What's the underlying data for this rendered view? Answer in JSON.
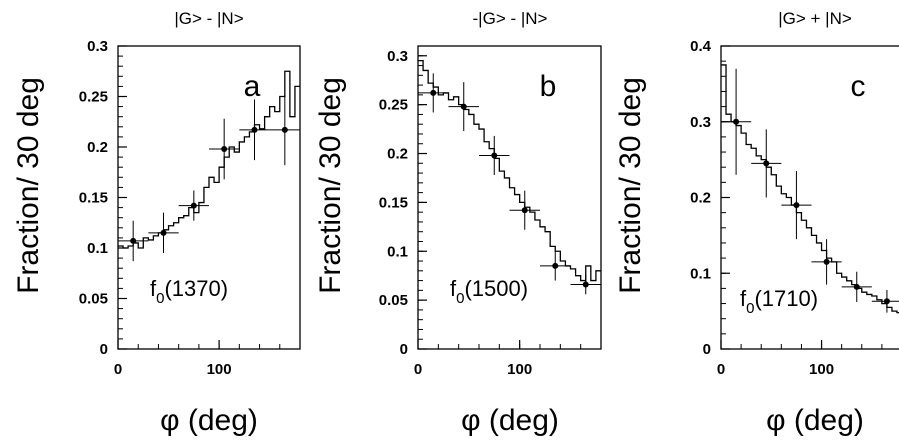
{
  "chart_data": [
    {
      "type": "line",
      "panel_letter": "a",
      "title": "|G> - |N>",
      "annotation": "f_0(1370)",
      "annotation_main": "f",
      "annotation_sub": "0",
      "annotation_rest": "(1370)",
      "ylabel": "Fraction/ 30 deg",
      "xlabel": "φ (deg)",
      "xlim": [
        0,
        180
      ],
      "ylim": [
        0,
        0.3
      ],
      "xticks": [
        0,
        100
      ],
      "yticks": [
        0,
        0.05,
        0.1,
        0.15,
        0.2,
        0.25,
        0.3
      ],
      "ytick_labels": [
        "0",
        "0.05",
        "0.1",
        "0.15",
        "0.2",
        "0.25",
        "0.3"
      ],
      "xtick_labels": [
        "0",
        "100"
      ],
      "series": [
        {
          "kind": "histogram",
          "bin_edges": [
            0,
            5,
            10,
            15,
            20,
            25,
            30,
            35,
            40,
            45,
            50,
            55,
            60,
            65,
            70,
            75,
            80,
            85,
            90,
            95,
            100,
            105,
            110,
            115,
            120,
            125,
            130,
            135,
            140,
            145,
            150,
            155,
            160,
            165,
            170,
            175,
            180
          ],
          "values": [
            0.102,
            0.1,
            0.102,
            0.105,
            0.1,
            0.11,
            0.108,
            0.112,
            0.115,
            0.118,
            0.122,
            0.125,
            0.13,
            0.132,
            0.14,
            0.135,
            0.145,
            0.16,
            0.17,
            0.165,
            0.18,
            0.19,
            0.2,
            0.195,
            0.205,
            0.21,
            0.215,
            0.222,
            0.218,
            0.23,
            0.24,
            0.235,
            0.25,
            0.275,
            0.23,
            0.26
          ]
        },
        {
          "kind": "points",
          "x": [
            15,
            45,
            75,
            105,
            135,
            165
          ],
          "y": [
            0.107,
            0.115,
            0.142,
            0.198,
            0.217,
            0.217
          ],
          "yerr": [
            0.02,
            0.02,
            0.015,
            0.03,
            0.03,
            0.035
          ],
          "xerr": 15
        }
      ]
    },
    {
      "type": "line",
      "panel_letter": "b",
      "title": "-|G> - |N>",
      "annotation": "f_0(1500)",
      "annotation_main": "f",
      "annotation_sub": "0",
      "annotation_rest": "(1500)",
      "ylabel": "Fraction/ 30 deg",
      "xlabel": "φ (deg)",
      "xlim": [
        0,
        180
      ],
      "ylim": [
        0,
        0.31
      ],
      "xticks": [
        0,
        100
      ],
      "yticks": [
        0,
        0.05,
        0.1,
        0.15,
        0.2,
        0.25,
        0.3
      ],
      "ytick_labels": [
        "0",
        "0.05",
        "0.1",
        "0.15",
        "0.2",
        "0.25",
        "0.3"
      ],
      "xtick_labels": [
        "0",
        "100"
      ],
      "series": [
        {
          "kind": "histogram",
          "bin_edges": [
            0,
            5,
            10,
            15,
            20,
            25,
            30,
            35,
            40,
            45,
            50,
            55,
            60,
            65,
            70,
            75,
            80,
            85,
            90,
            95,
            100,
            105,
            110,
            115,
            120,
            125,
            130,
            135,
            140,
            145,
            150,
            155,
            160,
            165,
            170,
            175,
            180
          ],
          "values": [
            0.295,
            0.285,
            0.272,
            0.268,
            0.26,
            0.262,
            0.255,
            0.258,
            0.25,
            0.245,
            0.24,
            0.23,
            0.225,
            0.212,
            0.205,
            0.195,
            0.182,
            0.175,
            0.165,
            0.158,
            0.15,
            0.145,
            0.14,
            0.132,
            0.125,
            0.12,
            0.105,
            0.1,
            0.09,
            0.085,
            0.082,
            0.075,
            0.07,
            0.085,
            0.07,
            0.08
          ]
        },
        {
          "kind": "points",
          "x": [
            15,
            45,
            75,
            105,
            135,
            165
          ],
          "y": [
            0.262,
            0.248,
            0.198,
            0.142,
            0.085,
            0.066
          ],
          "yerr": [
            0.02,
            0.025,
            0.02,
            0.02,
            0.015,
            0.01
          ],
          "xerr": 15
        }
      ]
    },
    {
      "type": "line",
      "panel_letter": "c",
      "title": "|G> + |N>",
      "annotation": "f_0(1710)",
      "annotation_main": "f",
      "annotation_sub": "0",
      "annotation_rest": "(1710)",
      "ylabel": "Fraction/ 30 deg",
      "xlabel": "φ (deg)",
      "xlim": [
        0,
        180
      ],
      "ylim": [
        0,
        0.4
      ],
      "xticks": [
        0,
        100
      ],
      "yticks": [
        0,
        0.1,
        0.2,
        0.3,
        0.4
      ],
      "ytick_labels": [
        "0",
        "0.1",
        "0.2",
        "0.3",
        "0.4"
      ],
      "xtick_labels": [
        "0",
        "100"
      ],
      "series": [
        {
          "kind": "histogram",
          "bin_edges": [
            0,
            5,
            10,
            15,
            20,
            25,
            30,
            35,
            40,
            45,
            50,
            55,
            60,
            65,
            70,
            75,
            80,
            85,
            90,
            95,
            100,
            105,
            110,
            115,
            120,
            125,
            130,
            135,
            140,
            145,
            150,
            155,
            160,
            165,
            170,
            175,
            180
          ],
          "values": [
            0.375,
            0.31,
            0.3,
            0.295,
            0.285,
            0.27,
            0.265,
            0.255,
            0.25,
            0.24,
            0.23,
            0.215,
            0.205,
            0.2,
            0.19,
            0.18,
            0.17,
            0.16,
            0.15,
            0.14,
            0.13,
            0.12,
            0.115,
            0.1,
            0.095,
            0.09,
            0.085,
            0.08,
            0.075,
            0.072,
            0.07,
            0.065,
            0.06,
            0.055,
            0.05,
            0.048
          ]
        },
        {
          "kind": "points",
          "x": [
            15,
            45,
            75,
            105,
            135,
            165
          ],
          "y": [
            0.3,
            0.245,
            0.19,
            0.115,
            0.082,
            0.063
          ],
          "yerr": [
            0.07,
            0.045,
            0.045,
            0.03,
            0.02,
            0.015
          ],
          "xerr": 15
        }
      ]
    }
  ]
}
